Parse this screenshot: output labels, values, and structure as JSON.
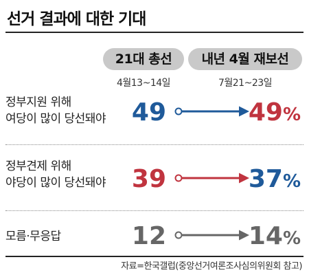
{
  "title": "선거 결과에 대한 기대",
  "source": "자료=한국갤럽(중앙선거여론조사심의위원회 참고)",
  "colors": {
    "ruling": "#1f5a9a",
    "opposition": "#c0343f",
    "unknown": "#666666"
  },
  "chart_data": {
    "type": "slope",
    "periods": [
      {
        "label": "21대 총선",
        "date": "4월13~14일"
      },
      {
        "label": "내년 4월 재보선",
        "date": "7월21~23일"
      }
    ],
    "series": [
      {
        "label_line1": "정부지원 위해",
        "label_line2": "여당이 많이 당선돼야",
        "start": 49,
        "end": 49,
        "end_suffix": "%",
        "start_color": "#1f5a9a",
        "end_color": "#c0343f",
        "line_color": "#1f5a9a"
      },
      {
        "label_line1": "정부견제 위해",
        "label_line2": "야당이 많이 당선돼야",
        "start": 39,
        "end": 37,
        "end_suffix": "%",
        "start_color": "#c0343f",
        "end_color": "#1f5a9a",
        "line_color": "#c0343f"
      },
      {
        "label_line1": "모름·무응답",
        "label_line2": "",
        "start": 12,
        "end": 14,
        "end_suffix": "%",
        "start_color": "#666666",
        "end_color": "#666666",
        "line_color": "#666666"
      }
    ]
  }
}
